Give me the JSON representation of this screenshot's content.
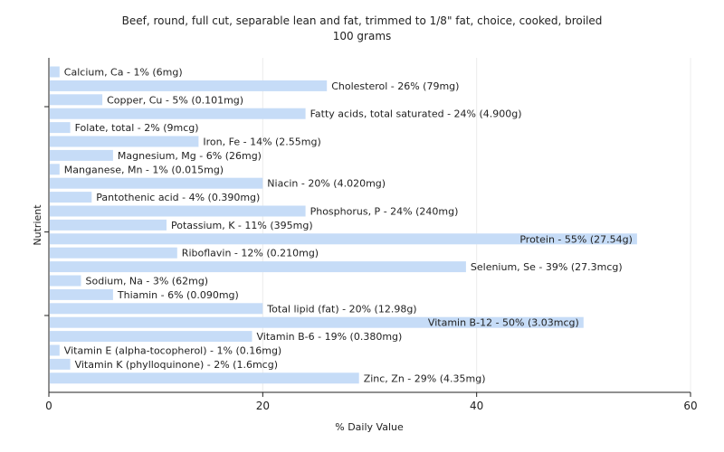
{
  "chart_data": {
    "type": "bar",
    "orientation": "horizontal",
    "title": "Beef, round, full cut, separable lean and fat, trimmed to 1/8\" fat, choice, cooked, broiled",
    "subtitle": "100 grams",
    "xlabel": "% Daily Value",
    "ylabel": "Nutrient",
    "xlim": [
      0,
      60
    ],
    "xticks": [
      "0",
      "20",
      "40",
      "60"
    ],
    "grid": true,
    "bar_color": "#c6dcf7",
    "categories": [
      "Calcium, Ca",
      "Cholesterol",
      "Copper, Cu",
      "Fatty acids, total saturated",
      "Folate, total",
      "Iron, Fe",
      "Magnesium, Mg",
      "Manganese, Mn",
      "Niacin",
      "Pantothenic acid",
      "Phosphorus, P",
      "Potassium, K",
      "Protein",
      "Riboflavin",
      "Selenium, Se",
      "Sodium, Na",
      "Thiamin",
      "Total lipid (fat)",
      "Vitamin B-12",
      "Vitamin B-6",
      "Vitamin E (alpha-tocopherol)",
      "Vitamin K (phylloquinone)",
      "Zinc, Zn"
    ],
    "values": [
      1,
      26,
      5,
      24,
      2,
      14,
      6,
      1,
      20,
      4,
      24,
      11,
      55,
      12,
      39,
      3,
      6,
      20,
      50,
      19,
      1,
      2,
      29
    ],
    "labels": [
      "Calcium, Ca - 1% (6mg)",
      "Cholesterol - 26% (79mg)",
      "Copper, Cu - 5% (0.101mg)",
      "Fatty acids, total saturated - 24% (4.900g)",
      "Folate, total - 2% (9mcg)",
      "Iron, Fe - 14% (2.55mg)",
      "Magnesium, Mg - 6% (26mg)",
      "Manganese, Mn - 1% (0.015mg)",
      "Niacin - 20% (4.020mg)",
      "Pantothenic acid - 4% (0.390mg)",
      "Phosphorus, P - 24% (240mg)",
      "Potassium, K - 11% (395mg)",
      "Protein - 55% (27.54g)",
      "Riboflavin - 12% (0.210mg)",
      "Selenium, Se - 39% (27.3mcg)",
      "Sodium, Na - 3% (62mg)",
      "Thiamin - 6% (0.090mg)",
      "Total lipid (fat) - 20% (12.98g)",
      "Vitamin B-12 - 50% (3.03mcg)",
      "Vitamin B-6 - 19% (0.380mg)",
      "Vitamin E (alpha-tocopherol) - 1% (0.16mg)",
      "Vitamin K (phylloquinone) - 2% (1.6mcg)",
      "Zinc, Zn - 29% (4.35mg)"
    ]
  }
}
